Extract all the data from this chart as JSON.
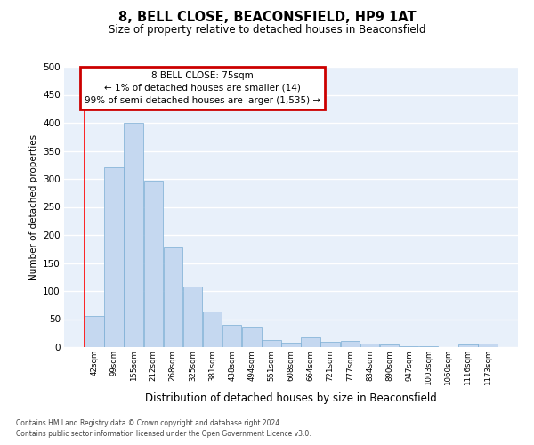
{
  "title": "8, BELL CLOSE, BEACONSFIELD, HP9 1AT",
  "subtitle": "Size of property relative to detached houses in Beaconsfield",
  "xlabel": "Distribution of detached houses by size in Beaconsfield",
  "ylabel": "Number of detached properties",
  "categories": [
    "42sqm",
    "99sqm",
    "155sqm",
    "212sqm",
    "268sqm",
    "325sqm",
    "381sqm",
    "438sqm",
    "494sqm",
    "551sqm",
    "608sqm",
    "664sqm",
    "721sqm",
    "777sqm",
    "834sqm",
    "890sqm",
    "947sqm",
    "1003sqm",
    "1060sqm",
    "1116sqm",
    "1173sqm"
  ],
  "values": [
    55,
    320,
    400,
    297,
    178,
    108,
    63,
    40,
    37,
    12,
    8,
    17,
    10,
    11,
    6,
    4,
    1,
    1,
    0,
    5,
    6
  ],
  "bar_color": "#c5d8f0",
  "bar_edge_color": "#7aadd4",
  "bg_color": "#e8f0fa",
  "grid_color": "#ffffff",
  "ylim": [
    0,
    500
  ],
  "yticks": [
    0,
    50,
    100,
    150,
    200,
    250,
    300,
    350,
    400,
    450,
    500
  ],
  "annotation_box_text_line1": "8 BELL CLOSE: 75sqm",
  "annotation_box_text_line2": "← 1% of detached houses are smaller (14)",
  "annotation_box_text_line3": "99% of semi-detached houses are larger (1,535) →",
  "annotation_box_color": "#cc0000",
  "footnote1": "Contains HM Land Registry data © Crown copyright and database right 2024.",
  "footnote2": "Contains public sector information licensed under the Open Government Licence v3.0."
}
